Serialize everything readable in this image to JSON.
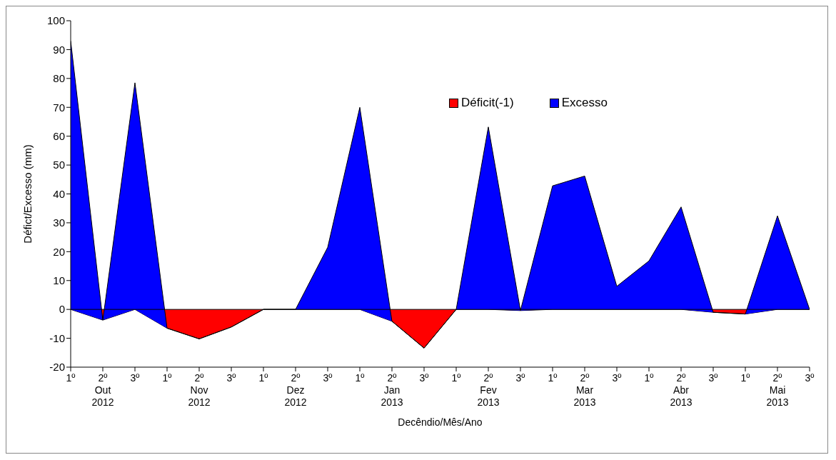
{
  "chart_data": {
    "type": "area",
    "stacked": true,
    "xlabel": "Decêndio/Mês/Ano",
    "ylabel": "Défict/Excesso (mm)",
    "categories": [
      "1º",
      "2º\nOut\n2012",
      "3º",
      "1º",
      "2º\nNov\n2012",
      "3º",
      "1º",
      "2º\nDez\n2012",
      "3º",
      "1º",
      "2º\nJan\n2013",
      "3º",
      "1º",
      "2º\nFev\n2013",
      "3º",
      "1º",
      "2º\nMar\n2013",
      "3º",
      "1º",
      "2º\nAbr\n2013",
      "3º",
      "1º",
      "2º\nMai\n2013",
      "3º"
    ],
    "series": [
      {
        "name": "Déficit(-1)",
        "color": "#ff0000",
        "values": [
          0,
          -3.7,
          0,
          -6.5,
          -10.2,
          -6.1,
          0,
          0,
          0,
          0,
          -4.1,
          -13.4,
          0,
          0,
          -0.4,
          0,
          0,
          0,
          0,
          0,
          -1.0,
          -1.6,
          0,
          0
        ]
      },
      {
        "name": "Excesso",
        "color": "#0000ff",
        "values": [
          93,
          0,
          78.5,
          0,
          0,
          0,
          0,
          0,
          21.5,
          70,
          0,
          0,
          0,
          63.2,
          0,
          42.8,
          46.2,
          8,
          16.8,
          35.5,
          0,
          0,
          32.4,
          0
        ]
      }
    ],
    "ylim": [
      -20,
      100
    ],
    "yticks": [
      -20,
      -10,
      0,
      10,
      20,
      30,
      40,
      50,
      60,
      70,
      80,
      90,
      100
    ],
    "legend": "top right"
  }
}
